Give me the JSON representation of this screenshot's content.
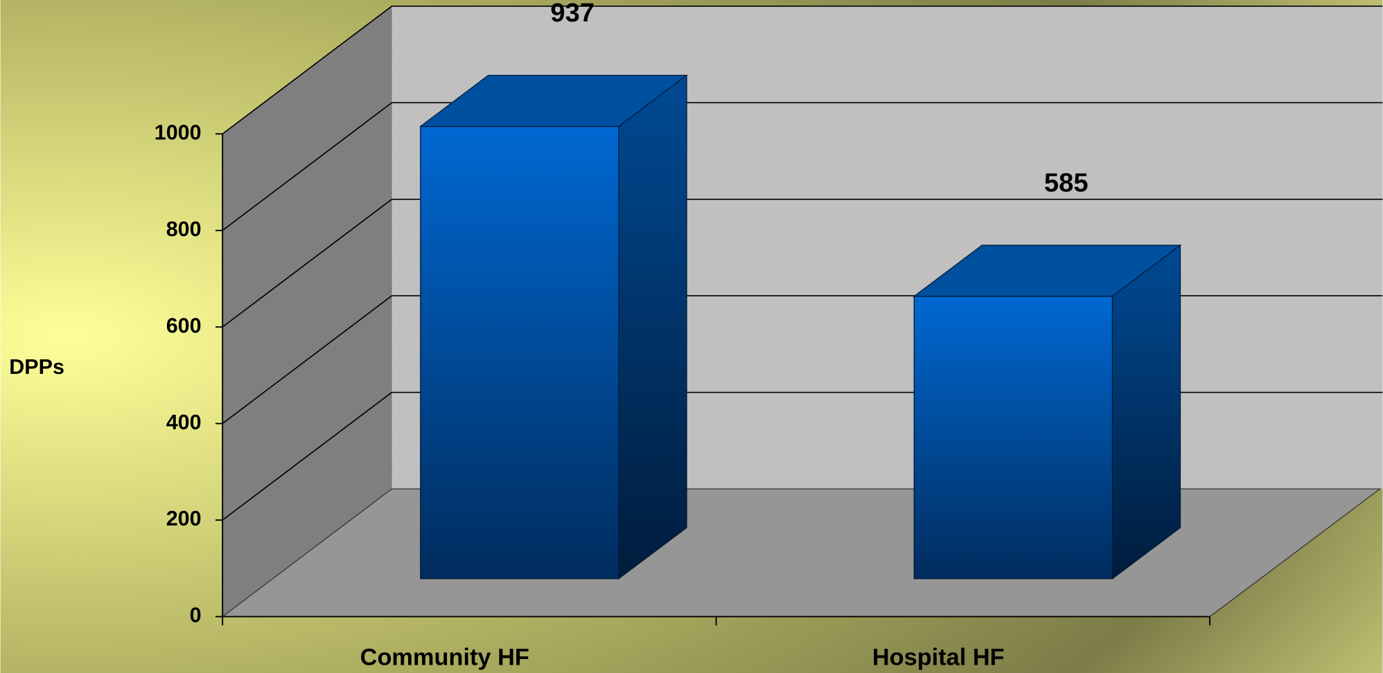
{
  "chart_data": {
    "type": "bar3d",
    "y_label": "DPPs",
    "categories": [
      "Community  HF",
      "Hospital   HF"
    ],
    "values": [
      937,
      585
    ],
    "color": "#0066cc",
    "ylim": [
      0,
      1000
    ],
    "yticks": [
      0,
      200,
      400,
      600,
      800,
      1000
    ],
    "grid": true
  }
}
